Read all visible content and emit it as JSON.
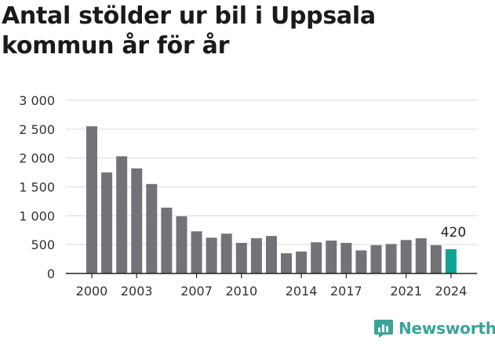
{
  "title": "Antal stölder ur bil i Uppsala kommun år för år",
  "brand": {
    "name": "Newsworthy",
    "icon": "newsworthy-logo-icon",
    "color": "#3aa49a"
  },
  "chart_data": {
    "type": "bar",
    "title": "Antal stölder ur bil i Uppsala kommun år för år",
    "xlabel": "",
    "ylabel": "",
    "ylim": [
      0,
      3000
    ],
    "yticks": [
      0,
      500,
      1000,
      1500,
      2000,
      2500,
      3000
    ],
    "ytick_labels": [
      "0",
      "500",
      "1 000",
      "1 500",
      "2 000",
      "2 500",
      "3 000"
    ],
    "xtick_labels": [
      "2000",
      "2003",
      "2007",
      "2010",
      "2014",
      "2017",
      "2021",
      "2024"
    ],
    "grid": true,
    "legend": "none",
    "bar_color": "#737278",
    "highlight_color": "#11a295",
    "categories": [
      "2000",
      "2001",
      "2002",
      "2003",
      "2004",
      "2005",
      "2006",
      "2007",
      "2008",
      "2009",
      "2010",
      "2011",
      "2012",
      "2013",
      "2014",
      "2015",
      "2016",
      "2017",
      "2018",
      "2019",
      "2020",
      "2021",
      "2022",
      "2023",
      "2024"
    ],
    "values": [
      2550,
      1750,
      2030,
      1820,
      1550,
      1140,
      990,
      730,
      620,
      690,
      530,
      610,
      650,
      350,
      380,
      540,
      570,
      530,
      400,
      490,
      510,
      580,
      610,
      490,
      420
    ],
    "highlight_index": 24,
    "annotations": [
      {
        "category": "2024",
        "text": "420"
      }
    ]
  }
}
